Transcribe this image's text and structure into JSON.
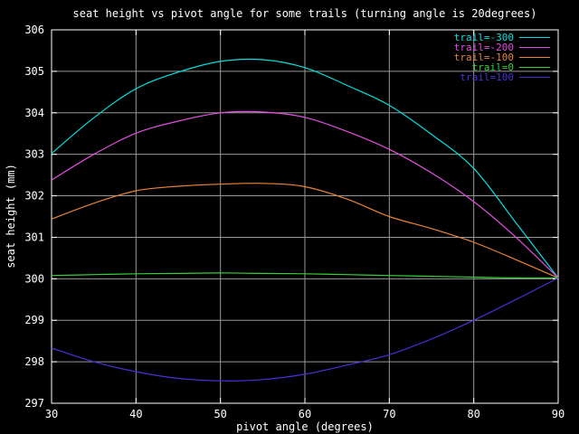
{
  "window": {
    "background": "#000000"
  },
  "chart_data": {
    "type": "line",
    "title": "seat height vs pivot angle for some trails (turning angle is 20degrees)",
    "xlabel": "pivot angle (degrees)",
    "ylabel": "seat height (mm)",
    "xlim": [
      30,
      90
    ],
    "ylim": [
      297,
      306
    ],
    "xticks": [
      30,
      40,
      50,
      60,
      70,
      80,
      90
    ],
    "yticks": [
      297,
      298,
      299,
      300,
      301,
      302,
      303,
      304,
      305,
      306
    ],
    "grid": true,
    "legend_position": "top-right-inside",
    "x": [
      30,
      35,
      40,
      45,
      50,
      55,
      60,
      65,
      70,
      75,
      80,
      85,
      90
    ],
    "series": [
      {
        "name": "trail=-300",
        "color": "#00e0e0",
        "values": [
          303.02,
          303.88,
          304.58,
          304.98,
          305.24,
          305.28,
          305.09,
          304.66,
          304.18,
          303.48,
          302.66,
          301.35,
          300.02
        ]
      },
      {
        "name": "trail=-200",
        "color": "#e24fe2",
        "values": [
          302.38,
          303.0,
          303.51,
          303.8,
          304.0,
          304.02,
          303.89,
          303.55,
          303.12,
          302.55,
          301.86,
          301.0,
          300.02
        ]
      },
      {
        "name": "trail=-100",
        "color": "#ea8335",
        "values": [
          301.44,
          301.82,
          302.12,
          302.23,
          302.28,
          302.3,
          302.22,
          301.92,
          301.5,
          301.21,
          300.88,
          300.46,
          300.02
        ]
      },
      {
        "name": "trail=0",
        "color": "#35d035",
        "values": [
          300.08,
          300.1,
          300.12,
          300.13,
          300.14,
          300.13,
          300.12,
          300.1,
          300.08,
          300.06,
          300.04,
          300.02,
          300.02
        ]
      },
      {
        "name": "trail=100",
        "color": "#4b2fd6",
        "values": [
          298.33,
          298.0,
          297.76,
          297.6,
          297.54,
          297.57,
          297.7,
          297.92,
          298.17,
          298.55,
          299.0,
          299.5,
          300.02
        ]
      }
    ],
    "colors": {
      "background": "#000000",
      "border": "#ffffff",
      "grid": "#989898",
      "tick": "#ffffff",
      "text": "#ffffff"
    }
  }
}
